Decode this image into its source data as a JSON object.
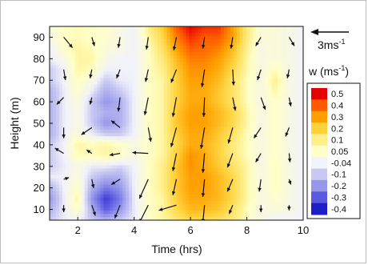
{
  "chart_data": {
    "type": "heatmap",
    "xlabel": "Time (hrs)",
    "ylabel": "Height (m)",
    "xlim": [
      1,
      10
    ],
    "ylim": [
      5,
      95
    ],
    "x_ticks": [
      2,
      4,
      6,
      8,
      10
    ],
    "y_ticks": [
      10,
      20,
      30,
      40,
      50,
      60,
      70,
      80,
      90
    ],
    "colorbar": {
      "title_base": "w (ms",
      "title_sup": "-1",
      "title_end": ")",
      "levels": [
        "0.5",
        "0.4",
        "0.3",
        "0.2",
        "0.1",
        "0.05",
        "-0.04",
        "-0.1",
        "-0.2",
        "-0.3",
        "-0.4"
      ],
      "colors": [
        "#e60000",
        "#ff5a00",
        "#ffa000",
        "#ffd23c",
        "#fff08c",
        "#ffffc8",
        "#f2f2fa",
        "#c8c8f2",
        "#9696eb",
        "#5a5ae1",
        "#1e1ec8"
      ]
    },
    "reference_vector": {
      "base": "3ms",
      "sup": "-1"
    },
    "x": [
      1,
      1.5,
      2,
      2.5,
      3,
      3.5,
      4,
      4.5,
      5,
      5.5,
      6,
      6.5,
      7,
      7.5,
      8,
      8.5,
      9,
      9.5,
      10
    ],
    "y": [
      5,
      10,
      15,
      20,
      25,
      30,
      35,
      40,
      45,
      50,
      55,
      60,
      65,
      70,
      75,
      80,
      85,
      90,
      95
    ],
    "w": [
      [
        -0.1,
        -0.05,
        -0.04,
        -0.1,
        -0.15,
        -0.1,
        -0.05,
        0.05,
        0.08,
        0.12,
        0.18,
        0.18,
        0.15,
        0.12,
        0.06,
        0.0,
        -0.04,
        -0.04,
        -0.04
      ],
      [
        -0.15,
        -0.05,
        0.05,
        -0.15,
        -0.3,
        -0.2,
        -0.05,
        0.05,
        0.08,
        0.18,
        0.25,
        0.25,
        0.22,
        0.15,
        0.06,
        0.0,
        0.02,
        0.0,
        -0.04
      ],
      [
        -0.2,
        -0.05,
        0.08,
        -0.2,
        -0.35,
        -0.25,
        -0.05,
        0.05,
        0.08,
        0.2,
        0.28,
        0.28,
        0.25,
        0.18,
        0.08,
        0.0,
        0.04,
        0.0,
        -0.04
      ],
      [
        -0.15,
        -0.04,
        0.05,
        -0.15,
        -0.25,
        -0.2,
        -0.04,
        0.05,
        0.1,
        0.22,
        0.3,
        0.3,
        0.25,
        0.18,
        0.08,
        0.0,
        0.06,
        0.0,
        -0.04
      ],
      [
        -0.05,
        -0.04,
        0.02,
        -0.1,
        -0.15,
        -0.15,
        -0.04,
        0.05,
        0.1,
        0.22,
        0.3,
        0.3,
        0.25,
        0.18,
        0.08,
        0.0,
        0.06,
        0.0,
        -0.04
      ],
      [
        -0.1,
        -0.05,
        0.0,
        -0.05,
        -0.05,
        -0.08,
        -0.04,
        0.05,
        0.1,
        0.22,
        0.32,
        0.28,
        0.22,
        0.15,
        0.08,
        0.0,
        0.06,
        0.0,
        -0.04
      ],
      [
        -0.1,
        -0.04,
        0.06,
        0.06,
        0.08,
        0.05,
        0.0,
        0.05,
        0.08,
        0.2,
        0.32,
        0.28,
        0.2,
        0.12,
        0.06,
        0.0,
        0.05,
        0.0,
        -0.04
      ],
      [
        -0.1,
        -0.04,
        0.08,
        0.06,
        0.08,
        0.05,
        0.0,
        0.05,
        0.08,
        0.18,
        0.28,
        0.26,
        0.2,
        0.12,
        0.06,
        0.0,
        0.05,
        0.0,
        -0.04
      ],
      [
        -0.15,
        -0.05,
        0.02,
        -0.05,
        -0.1,
        -0.1,
        -0.04,
        0.05,
        0.08,
        0.2,
        0.28,
        0.28,
        0.22,
        0.15,
        0.06,
        0.0,
        0.05,
        0.0,
        -0.04
      ],
      [
        -0.15,
        -0.05,
        0.0,
        -0.1,
        -0.2,
        -0.15,
        -0.04,
        0.05,
        0.08,
        0.22,
        0.3,
        0.3,
        0.25,
        0.18,
        0.08,
        0.0,
        0.05,
        0.0,
        -0.04
      ],
      [
        -0.15,
        -0.05,
        0.0,
        -0.1,
        -0.15,
        -0.15,
        -0.04,
        0.05,
        0.08,
        0.22,
        0.3,
        0.3,
        0.25,
        0.18,
        0.08,
        0.0,
        0.05,
        0.0,
        -0.04
      ],
      [
        -0.15,
        -0.05,
        0.02,
        -0.1,
        -0.2,
        -0.15,
        -0.04,
        0.05,
        0.08,
        0.2,
        0.28,
        0.28,
        0.22,
        0.15,
        0.06,
        0.0,
        0.05,
        0.0,
        -0.04
      ],
      [
        -0.15,
        -0.05,
        0.04,
        -0.05,
        -0.15,
        -0.1,
        -0.04,
        0.05,
        0.08,
        0.2,
        0.28,
        0.28,
        0.22,
        0.15,
        0.06,
        0.0,
        0.08,
        0.0,
        -0.04
      ],
      [
        -0.1,
        -0.04,
        0.06,
        0.0,
        -0.1,
        -0.05,
        -0.04,
        0.05,
        0.08,
        0.2,
        0.3,
        0.3,
        0.25,
        0.15,
        0.06,
        0.0,
        0.1,
        0.0,
        -0.04
      ],
      [
        -0.1,
        -0.04,
        0.08,
        0.06,
        -0.04,
        -0.04,
        -0.04,
        0.05,
        0.1,
        0.22,
        0.32,
        0.32,
        0.28,
        0.18,
        0.08,
        0.0,
        0.06,
        0.0,
        -0.04
      ],
      [
        -0.05,
        0.0,
        0.08,
        0.08,
        0.0,
        -0.04,
        -0.04,
        0.05,
        0.12,
        0.25,
        0.35,
        0.35,
        0.3,
        0.22,
        0.08,
        0.0,
        0.02,
        0.0,
        -0.04
      ],
      [
        -0.04,
        0.04,
        0.08,
        0.06,
        0.02,
        0.0,
        -0.04,
        0.05,
        0.15,
        0.3,
        0.4,
        0.38,
        0.35,
        0.25,
        0.1,
        0.0,
        0.02,
        0.0,
        -0.04
      ],
      [
        0.0,
        0.05,
        0.06,
        0.05,
        0.04,
        0.0,
        -0.04,
        0.08,
        0.18,
        0.35,
        0.45,
        0.4,
        0.4,
        0.3,
        0.12,
        0.02,
        0.02,
        0.0,
        -0.04
      ],
      [
        0.0,
        0.05,
        0.06,
        0.05,
        0.04,
        0.0,
        -0.04,
        0.1,
        0.2,
        0.4,
        0.5,
        0.45,
        0.45,
        0.3,
        0.12,
        0.02,
        0.02,
        0.0,
        -0.04
      ]
    ],
    "vectors": [
      {
        "x": 1.5,
        "y": 90,
        "u": 1.0,
        "v": -1.2
      },
      {
        "x": 2.5,
        "y": 90,
        "u": 0.3,
        "v": -1.0
      },
      {
        "x": 3.5,
        "y": 90,
        "u": -0.2,
        "v": -1.2
      },
      {
        "x": 4.5,
        "y": 90,
        "u": -0.2,
        "v": -1.4
      },
      {
        "x": 5.5,
        "y": 90,
        "u": -0.3,
        "v": -1.5
      },
      {
        "x": 6.5,
        "y": 90,
        "u": -0.2,
        "v": -1.3
      },
      {
        "x": 7.5,
        "y": 90,
        "u": -0.2,
        "v": -1.3
      },
      {
        "x": 8.5,
        "y": 90,
        "u": -0.6,
        "v": -1.0
      },
      {
        "x": 9.5,
        "y": 90,
        "u": 0.6,
        "v": -1.0
      },
      {
        "x": 1.5,
        "y": 75,
        "u": 0.2,
        "v": -1.2
      },
      {
        "x": 2.5,
        "y": 75,
        "u": -0.2,
        "v": -1.0
      },
      {
        "x": 3.5,
        "y": 75,
        "u": -0.4,
        "v": -1.0
      },
      {
        "x": 4.5,
        "y": 75,
        "u": -0.3,
        "v": -1.4
      },
      {
        "x": 5.5,
        "y": 75,
        "u": -0.6,
        "v": -1.5
      },
      {
        "x": 6.5,
        "y": 75,
        "u": -0.3,
        "v": -2.0
      },
      {
        "x": 7.5,
        "y": 75,
        "u": 0.1,
        "v": -1.8
      },
      {
        "x": 8.5,
        "y": 75,
        "u": -0.4,
        "v": -1.2
      },
      {
        "x": 9.5,
        "y": 75,
        "u": -0.2,
        "v": -1.0
      },
      {
        "x": 1.5,
        "y": 62,
        "u": -0.8,
        "v": -0.8
      },
      {
        "x": 2.5,
        "y": 62,
        "u": -0.2,
        "v": -0.8
      },
      {
        "x": 3.5,
        "y": 62,
        "u": -0.2,
        "v": -1.6
      },
      {
        "x": 4.5,
        "y": 62,
        "u": -0.4,
        "v": -2.0
      },
      {
        "x": 5.5,
        "y": 62,
        "u": -0.4,
        "v": -2.2
      },
      {
        "x": 6.5,
        "y": 62,
        "u": -0.1,
        "v": -2.2
      },
      {
        "x": 7.5,
        "y": 62,
        "u": 0.3,
        "v": -1.5
      },
      {
        "x": 8.5,
        "y": 62,
        "u": 0.5,
        "v": -1.4
      },
      {
        "x": 9.5,
        "y": 62,
        "u": 0.2,
        "v": -1.0
      },
      {
        "x": 1.5,
        "y": 48,
        "u": 0.0,
        "v": -1.2
      },
      {
        "x": 2.5,
        "y": 48,
        "u": -1.2,
        "v": -0.8
      },
      {
        "x": 3.5,
        "y": 48,
        "u": -1.0,
        "v": 0.8
      },
      {
        "x": 4.5,
        "y": 48,
        "u": 0.3,
        "v": -1.6
      },
      {
        "x": 5.5,
        "y": 48,
        "u": -0.6,
        "v": -2.2
      },
      {
        "x": 6.5,
        "y": 48,
        "u": -0.4,
        "v": -2.4
      },
      {
        "x": 7.5,
        "y": 48,
        "u": -0.5,
        "v": -1.8
      },
      {
        "x": 8.5,
        "y": 48,
        "u": -0.8,
        "v": -1.2
      },
      {
        "x": 9.5,
        "y": 48,
        "u": -0.4,
        "v": -1.0
      },
      {
        "x": 1.5,
        "y": 36,
        "u": -1.0,
        "v": 0.6
      },
      {
        "x": 2.5,
        "y": 36,
        "u": -0.6,
        "v": 0.4
      },
      {
        "x": 3.5,
        "y": 36,
        "u": -1.2,
        "v": -0.2
      },
      {
        "x": 4.5,
        "y": 36,
        "u": -1.8,
        "v": 0.1
      },
      {
        "x": 5.5,
        "y": 36,
        "u": -0.4,
        "v": -2.0
      },
      {
        "x": 6.5,
        "y": 36,
        "u": -0.2,
        "v": -2.2
      },
      {
        "x": 7.5,
        "y": 36,
        "u": -0.6,
        "v": -1.6
      },
      {
        "x": 8.5,
        "y": 36,
        "u": -0.6,
        "v": -1.0
      },
      {
        "x": 9.5,
        "y": 36,
        "u": 0.1,
        "v": -1.0
      },
      {
        "x": 1.5,
        "y": 24,
        "u": 0.6,
        "v": 0.2
      },
      {
        "x": 2.5,
        "y": 24,
        "u": 0.2,
        "v": -1.0
      },
      {
        "x": 3.5,
        "y": 24,
        "u": -1.0,
        "v": -0.6
      },
      {
        "x": 4.5,
        "y": 24,
        "u": -1.0,
        "v": -2.2
      },
      {
        "x": 5.5,
        "y": 24,
        "u": -0.4,
        "v": -1.8
      },
      {
        "x": 6.5,
        "y": 24,
        "u": -0.2,
        "v": -2.0
      },
      {
        "x": 7.5,
        "y": 24,
        "u": -0.6,
        "v": -1.4
      },
      {
        "x": 8.5,
        "y": 24,
        "u": -0.2,
        "v": -1.4
      },
      {
        "x": 9.5,
        "y": 24,
        "u": 0.2,
        "v": -0.6
      },
      {
        "x": 1.5,
        "y": 12,
        "u": 0.0,
        "v": -0.8
      },
      {
        "x": 2.5,
        "y": 12,
        "u": 0.4,
        "v": -1.2
      },
      {
        "x": 3.5,
        "y": 12,
        "u": -0.6,
        "v": -1.5
      },
      {
        "x": 4.5,
        "y": 12,
        "u": -1.0,
        "v": -2.0
      },
      {
        "x": 5.5,
        "y": 12,
        "u": -2.0,
        "v": -0.6
      },
      {
        "x": 6.5,
        "y": 12,
        "u": -0.2,
        "v": -2.0
      },
      {
        "x": 7.5,
        "y": 12,
        "u": -0.4,
        "v": -1.0
      },
      {
        "x": 8.5,
        "y": 12,
        "u": 0.0,
        "v": -0.8
      },
      {
        "x": 9.5,
        "y": 12,
        "u": 0.0,
        "v": -0.6
      }
    ]
  }
}
